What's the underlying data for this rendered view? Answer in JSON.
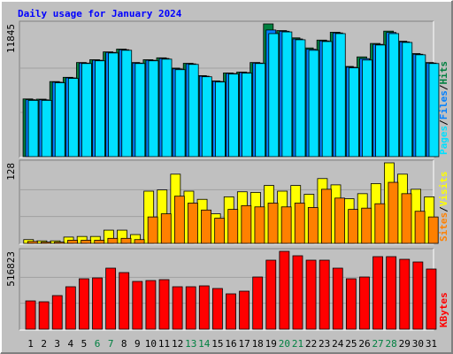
{
  "chart_data": [
    {
      "type": "bar",
      "title": "Daily usage for January 2024",
      "legend_separator": "/",
      "ylim": [
        0,
        11845
      ],
      "yticks": [
        11845
      ],
      "series": [
        {
          "name": "Hits",
          "color": "#008040",
          "values": [
            5150,
            5130,
            6700,
            7080,
            8400,
            8650,
            9350,
            9600,
            8400,
            8650,
            8820,
            7900,
            8330,
            7230,
            6760,
            7470,
            7550,
            8400,
            11845,
            11250,
            10600,
            9700,
            10400,
            11100,
            8050,
            8900,
            10100,
            11200,
            10300,
            9200,
            8400
          ]
        },
        {
          "name": "Files",
          "color": "#0080ff",
          "values": [
            5080,
            5070,
            6640,
            7030,
            8350,
            8600,
            9300,
            9540,
            8350,
            8600,
            8760,
            7830,
            8280,
            7180,
            6710,
            7420,
            7500,
            8350,
            11300,
            11190,
            10500,
            9580,
            10330,
            11040,
            7980,
            8750,
            10020,
            11080,
            10240,
            9140,
            8350
          ]
        },
        {
          "name": "Pages",
          "color": "#00e0ff",
          "values": [
            5018,
            5018,
            6590,
            6980,
            8310,
            8550,
            9250,
            9490,
            8310,
            8550,
            8700,
            7760,
            8230,
            7130,
            6660,
            7370,
            7450,
            8310,
            10980,
            11130,
            10430,
            9490,
            10270,
            10980,
            7920,
            8620,
            9960,
            10980,
            10190,
            9090,
            8310
          ]
        }
      ]
    },
    {
      "type": "bar",
      "ylim": [
        0,
        128
      ],
      "yticks": [
        128
      ],
      "series": [
        {
          "name": "Visits",
          "color": "#ffff00",
          "values": [
            6,
            4,
            4,
            10,
            11,
            11,
            21,
            21,
            14,
            83,
            85,
            110,
            83,
            70,
            47,
            74,
            82,
            81,
            92,
            83,
            92,
            78,
            103,
            93,
            71,
            79,
            95,
            128,
            110,
            86,
            74
          ]
        },
        {
          "name": "Sites",
          "color": "#ff8000",
          "values": [
            3,
            2,
            2,
            5,
            5,
            5,
            8,
            8,
            6,
            42,
            47,
            75,
            64,
            53,
            40,
            54,
            60,
            58,
            64,
            58,
            64,
            57,
            86,
            72,
            54,
            56,
            63,
            97,
            79,
            51,
            42
          ]
        }
      ]
    },
    {
      "type": "bar",
      "ylim": [
        0,
        516823
      ],
      "yticks": [
        516823
      ],
      "categories": [
        "1",
        "2",
        "3",
        "4",
        "5",
        "6",
        "7",
        "8",
        "9",
        "10",
        "11",
        "12",
        "13",
        "14",
        "15",
        "16",
        "17",
        "18",
        "19",
        "20",
        "21",
        "22",
        "23",
        "24",
        "25",
        "26",
        "27",
        "28",
        "29",
        "30",
        "31"
      ],
      "category_colors": [
        "#000000",
        "#000000",
        "#000000",
        "#000000",
        "#000000",
        "#008040",
        "#008040",
        "#000000",
        "#000000",
        "#000000",
        "#000000",
        "#000000",
        "#008040",
        "#008040",
        "#000000",
        "#000000",
        "#000000",
        "#000000",
        "#000000",
        "#008040",
        "#008040",
        "#000000",
        "#000000",
        "#000000",
        "#000000",
        "#000000",
        "#008040",
        "#008040",
        "#000000",
        "#000000",
        "#000000"
      ],
      "series": [
        {
          "name": "KBytes",
          "color": "#ff0000",
          "values": [
            187900,
            182100,
            223200,
            281900,
            334800,
            340600,
            405200,
            375900,
            317100,
            323000,
            328900,
            281900,
            281900,
            287800,
            270200,
            234900,
            252500,
            346500,
            458100,
            516823,
            487500,
            458100,
            458100,
            405200,
            334800,
            346500,
            481600,
            481600,
            464000,
            446300,
            399400
          ]
        }
      ]
    }
  ]
}
